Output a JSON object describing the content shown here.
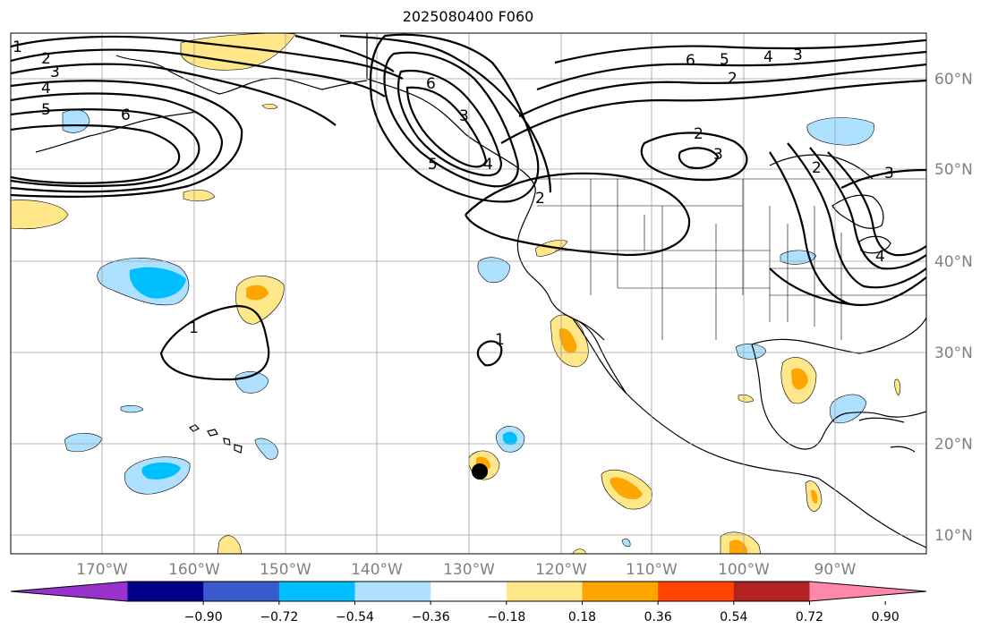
{
  "title": "2025080400 F060",
  "longitude_labels": [
    "170°W",
    "160°W",
    "150°W",
    "140°W",
    "130°W",
    "120°W",
    "110°W",
    "100°W",
    "90°W"
  ],
  "latitude_labels": [
    "60°N",
    "50°N",
    "40°N",
    "30°N",
    "20°N",
    "10°N"
  ],
  "contour_labels": [
    "1",
    "2",
    "3",
    "4",
    "5",
    "6",
    "6",
    "5",
    "4",
    "3",
    "2",
    "2",
    "3",
    "6",
    "5",
    "4",
    "3",
    "2",
    "2",
    "3",
    "4",
    "1",
    "1"
  ],
  "colorbar": {
    "colors": [
      "#9932cc",
      "#00008b",
      "#3a5bcd",
      "#00bfff",
      "#aee1ff",
      "#ffffff",
      "#ffe78a",
      "#ffa500",
      "#ff4500",
      "#b22222",
      "#ff88aa"
    ],
    "tick_labels": [
      "−0.90",
      "−0.72",
      "−0.54",
      "−0.36",
      "−0.18",
      "0.18",
      "0.36",
      "0.54",
      "0.72",
      "0.90"
    ]
  },
  "colors": {
    "light_blue": "#aee1ff",
    "deep_sky_blue": "#00bfff",
    "light_yellow": "#ffe78a",
    "orange": "#ffa500",
    "grid": "#a0a0a0",
    "contour": "#000000"
  }
}
